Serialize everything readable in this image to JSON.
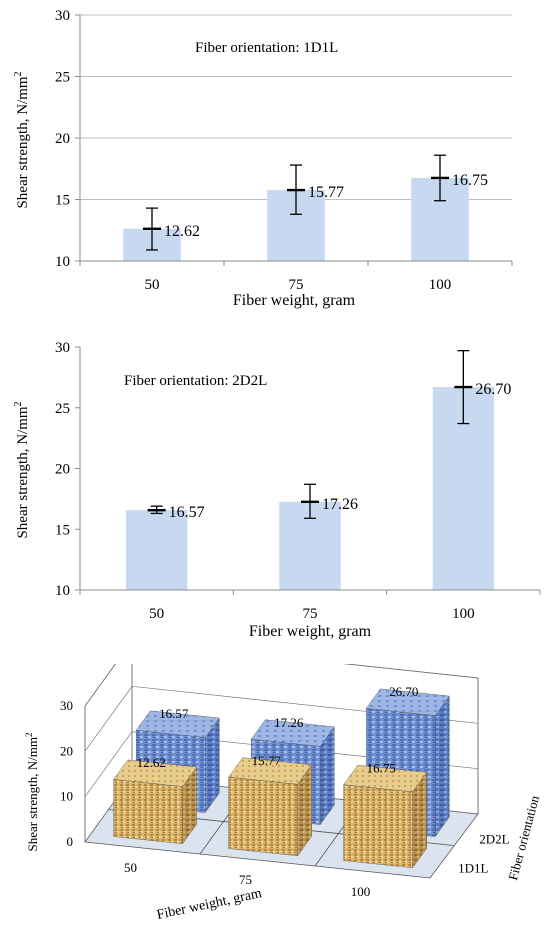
{
  "chart_data": [
    {
      "type": "bar",
      "annotation": "Fiber orientation: 1D1L",
      "categories": [
        "50",
        "75",
        "100"
      ],
      "values": [
        12.62,
        15.77,
        16.75
      ],
      "value_labels": [
        "12.62",
        "15.77",
        "16.75"
      ],
      "error": [
        {
          "low": 10.9,
          "high": 14.3
        },
        {
          "low": 13.8,
          "high": 17.8
        },
        {
          "low": 14.9,
          "high": 18.6
        }
      ],
      "xlabel": "Fiber weight, gram",
      "ylabel": "Shear  strength,  N/mm",
      "ylabel_sup": "2",
      "ylim": [
        10,
        30
      ],
      "yticks": [
        10,
        15,
        20,
        25,
        30
      ],
      "ytick_labels": [
        "10",
        "15",
        "20",
        "25",
        "30"
      ],
      "bar_color": "#c6d9f0",
      "grid": true
    },
    {
      "type": "bar",
      "annotation": "Fiber orientation: 2D2L",
      "categories": [
        "50",
        "75",
        "100"
      ],
      "values": [
        16.57,
        17.26,
        26.7
      ],
      "value_labels": [
        "16.57",
        "17.26",
        "26.70"
      ],
      "error": [
        {
          "low": 16.3,
          "high": 16.9
        },
        {
          "low": 15.9,
          "high": 18.7
        },
        {
          "low": 23.7,
          "high": 29.7
        }
      ],
      "xlabel": "Fiber weight, gram",
      "ylabel": "Shear  strength,  N/mm",
      "ylabel_sup": "2",
      "ylim": [
        10,
        30
      ],
      "yticks": [
        10,
        15,
        20,
        25,
        30
      ],
      "ytick_labels": [
        "10",
        "15",
        "20",
        "25",
        "30"
      ],
      "bar_color": "#c6d9f0",
      "grid": false
    },
    {
      "type": "bar3d",
      "categories": [
        "50",
        "75",
        "100"
      ],
      "series": [
        {
          "name": "1D1L",
          "values": [
            12.62,
            15.77,
            16.75
          ],
          "value_labels": [
            "12.62",
            "15.77",
            "16.75"
          ],
          "color": "#d9b46a"
        },
        {
          "name": "2D2L",
          "values": [
            16.57,
            17.26,
            26.7
          ],
          "value_labels": [
            "16.57",
            "17.26",
            "26.70"
          ],
          "color": "#6f8fd0"
        }
      ],
      "xlabel": "Fiber weight, gram",
      "ylabel": "Shear  strength, N/mm",
      "ylabel_sup": "2",
      "zlabel": "Fiber orientation",
      "zlim": [
        0,
        30
      ],
      "zticks": [
        0,
        10,
        20,
        30
      ],
      "ztick_labels": [
        "0",
        "10",
        "20",
        "30"
      ]
    }
  ]
}
